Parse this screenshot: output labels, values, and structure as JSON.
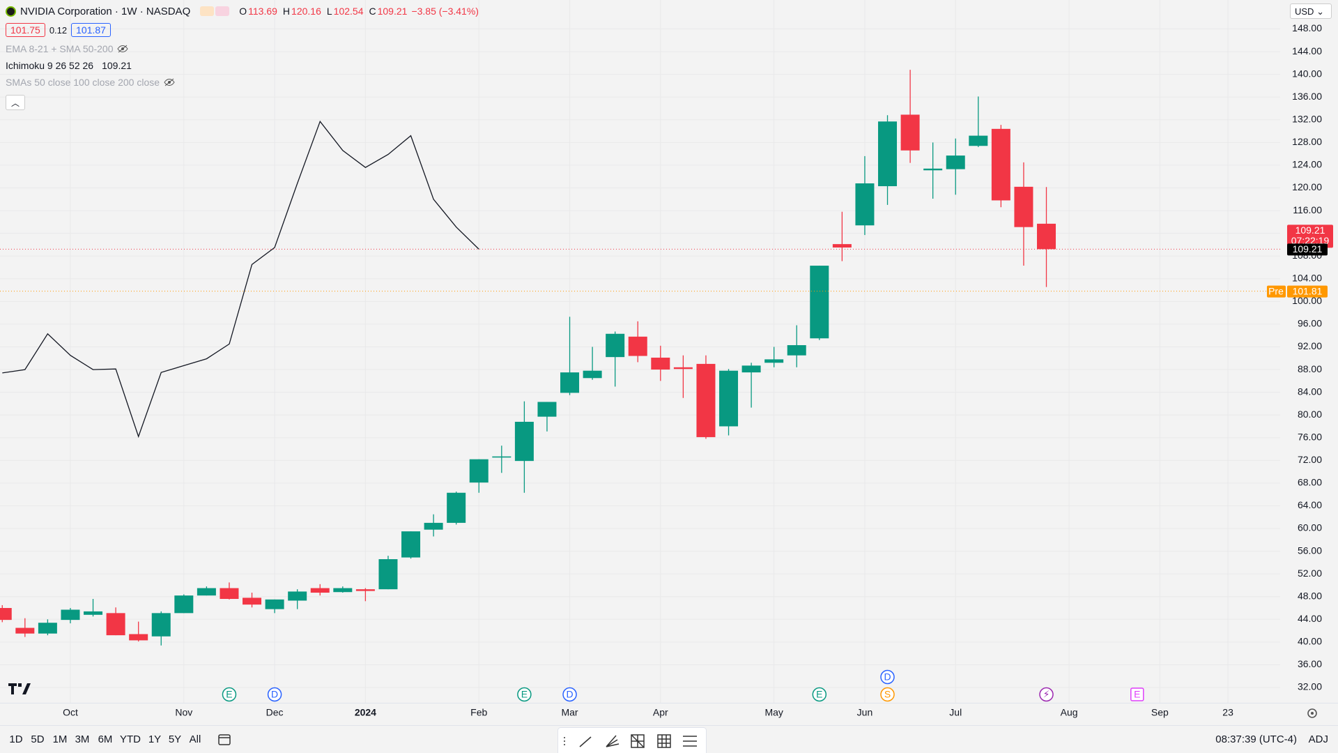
{
  "header": {
    "symbol": "NVIDIA Corporation · 1W · NASDAQ",
    "ohlc": [
      {
        "label": "O",
        "value": 113.69
      },
      {
        "label": "H",
        "value": 120.16
      },
      {
        "label": "L",
        "value": 102.54
      },
      {
        "label": "C",
        "value": 109.21
      }
    ],
    "change": "−3.85 (−3.41%)",
    "bid": 101.75,
    "spread": 0.12,
    "ask": 101.87,
    "indicators": [
      {
        "name": "EMA 8-21 + SMA 50-200",
        "hidden": true
      },
      {
        "name": "Ichimoku 9 26 52 26",
        "value": 109.21,
        "hidden": false
      },
      {
        "name": "SMAs 50 close 100 close 200 close",
        "hidden": true
      }
    ]
  },
  "currency": "USD",
  "toolbar": {
    "ranges": [
      "1D",
      "5D",
      "1M",
      "3M",
      "6M",
      "YTD",
      "1Y",
      "5Y",
      "All"
    ],
    "time": "08:37:39 (UTC-4)",
    "adj": "ADJ"
  },
  "chart_data": {
    "type": "candlestick",
    "up_color": "#089981",
    "down_color": "#f23645",
    "grid": true,
    "open": [
      46.0,
      42.5,
      41.5,
      43.9,
      44.8,
      45.1,
      41.4,
      41.0,
      45.1,
      48.2,
      49.5,
      47.8,
      45.8,
      47.3,
      49.5,
      48.8,
      49.3,
      49.3,
      54.9,
      59.8,
      61.0,
      68.1,
      72.5,
      71.9,
      79.7,
      83.9,
      86.5,
      90.2,
      93.8,
      90.1,
      88.4,
      89.0,
      78.0,
      87.5,
      89.2,
      90.5,
      93.5,
      110.1,
      113.4,
      120.3,
      132.9,
      123.1,
      123.3,
      127.4,
      130.4,
      120.2,
      113.69
    ],
    "high": [
      46.5,
      44.2,
      44.0,
      46.0,
      47.6,
      46.1,
      43.6,
      45.4,
      48.4,
      49.8,
      50.5,
      48.7,
      47.5,
      49.3,
      50.2,
      49.8,
      49.5,
      55.2,
      59.5,
      62.5,
      66.5,
      72.2,
      74.6,
      82.4,
      82.3,
      97.3,
      92.0,
      94.7,
      96.5,
      92.2,
      90.5,
      90.5,
      88.1,
      89.2,
      92.0,
      95.8,
      106.3,
      115.8,
      125.6,
      132.8,
      140.8,
      128.0,
      128.7,
      136.1,
      131.1,
      124.5,
      120.16
    ],
    "low": [
      43.5,
      40.9,
      41.2,
      43.3,
      44.5,
      41.2,
      40.1,
      39.4,
      45.1,
      48.2,
      47.5,
      46.1,
      45.1,
      45.8,
      48.2,
      48.7,
      47.2,
      49.3,
      54.7,
      58.6,
      60.7,
      66.3,
      69.8,
      66.3,
      77.1,
      83.5,
      86.2,
      85.0,
      89.3,
      86.0,
      83.0,
      75.8,
      76.4,
      81.3,
      88.4,
      88.4,
      93.2,
      107.1,
      111.7,
      117.0,
      124.4,
      118.1,
      118.8,
      127.2,
      116.6,
      106.3,
      102.54
    ],
    "close": [
      43.9,
      41.5,
      43.4,
      45.7,
      45.4,
      41.2,
      40.3,
      45.1,
      48.2,
      49.5,
      47.6,
      46.6,
      47.5,
      48.9,
      48.7,
      49.5,
      49.0,
      54.6,
      59.5,
      61.0,
      66.3,
      72.2,
      72.7,
      78.8,
      82.3,
      87.5,
      87.8,
      94.3,
      90.4,
      88.0,
      88.1,
      76.1,
      87.8,
      88.7,
      89.8,
      92.3,
      106.3,
      109.5,
      120.8,
      131.7,
      126.6,
      123.4,
      125.7,
      129.2,
      117.8,
      113.1,
      109.21
    ],
    "line_series": {
      "color": "#131722",
      "x": [
        0,
        1,
        2,
        3,
        4,
        5,
        6,
        7,
        8,
        9,
        10,
        11,
        12,
        13,
        14,
        15,
        16,
        17,
        18,
        19,
        20,
        21
      ],
      "values": [
        87.4,
        88.0,
        94.3,
        90.5,
        88.0,
        88.1,
        76.2,
        87.5,
        88.7,
        89.9,
        92.5,
        106.5,
        109.5,
        120.8,
        131.7,
        126.6,
        123.6,
        125.9,
        129.2,
        118.0,
        113.1,
        109.2
      ]
    },
    "last_price": 109.21,
    "countdown": "07:22:19",
    "premarket_label": "Pre",
    "premarket_price": 101.81,
    "xlim": [
      -0.1,
      56.3
    ],
    "xticks": [
      {
        "value": 3,
        "label": "Oct"
      },
      {
        "value": 8,
        "label": "Nov"
      },
      {
        "value": 12,
        "label": "Dec"
      },
      {
        "value": 16,
        "label": "2024"
      },
      {
        "value": 21,
        "label": "Feb"
      },
      {
        "value": 25,
        "label": "Mar"
      },
      {
        "value": 29,
        "label": "Apr"
      },
      {
        "value": 34,
        "label": "May"
      },
      {
        "value": 38,
        "label": "Jun"
      },
      {
        "value": 42,
        "label": "Jul"
      },
      {
        "value": 47,
        "label": "Aug"
      },
      {
        "value": 51,
        "label": "Sep"
      },
      {
        "value": 54,
        "label": "23"
      }
    ],
    "ylim": [
      29.3,
      153.1
    ],
    "yticks": [
      {
        "value": 32,
        "label": "32.00"
      },
      {
        "value": 36,
        "label": "36.00"
      },
      {
        "value": 40,
        "label": "40.00"
      },
      {
        "value": 44,
        "label": "44.00"
      },
      {
        "value": 48,
        "label": "48.00"
      },
      {
        "value": 52,
        "label": "52.00"
      },
      {
        "value": 56,
        "label": "56.00"
      },
      {
        "value": 60,
        "label": "60.00"
      },
      {
        "value": 64,
        "label": "64.00"
      },
      {
        "value": 68,
        "label": "68.00"
      },
      {
        "value": 72,
        "label": "72.00"
      },
      {
        "value": 76,
        "label": "76.00"
      },
      {
        "value": 80,
        "label": "80.00"
      },
      {
        "value": 84,
        "label": "84.00"
      },
      {
        "value": 88,
        "label": "88.00"
      },
      {
        "value": 92,
        "label": "92.00"
      },
      {
        "value": 96,
        "label": "96.00"
      },
      {
        "value": 100,
        "label": "100.00"
      },
      {
        "value": 104,
        "label": "104.00"
      },
      {
        "value": 108,
        "label": "108.00"
      },
      {
        "value": 112,
        "label": "112.00"
      },
      {
        "value": 116,
        "label": "116.00"
      },
      {
        "value": 120,
        "label": "120.00"
      },
      {
        "value": 124,
        "label": "124.00"
      },
      {
        "value": 128,
        "label": "128.00"
      },
      {
        "value": 132,
        "label": "132.00"
      },
      {
        "value": 136,
        "label": "136.00"
      },
      {
        "value": 140,
        "label": "140.00"
      },
      {
        "value": 144,
        "label": "144.00"
      },
      {
        "value": 148,
        "label": "148.00"
      }
    ],
    "events": [
      {
        "label": "E",
        "x": 10,
        "color": "#089981",
        "shape": "circle"
      },
      {
        "label": "D",
        "x": 12,
        "color": "#2962ff",
        "shape": "circle"
      },
      {
        "label": "E",
        "x": 23,
        "color": "#089981",
        "shape": "circle"
      },
      {
        "label": "D",
        "x": 25,
        "color": "#2962ff",
        "shape": "circle"
      },
      {
        "label": "E",
        "x": 36,
        "color": "#089981",
        "shape": "circle"
      },
      {
        "label": "S",
        "x": 39,
        "color": "#ff9800",
        "shape": "circle"
      },
      {
        "label": "D",
        "x": 39,
        "color": "#2962ff",
        "shape": "circle"
      },
      {
        "label": "⚡",
        "x": 46,
        "color": "#9c27b0",
        "shape": "circle"
      },
      {
        "label": "E",
        "x": 50,
        "color": "#e040fb",
        "shape": "square"
      }
    ]
  }
}
